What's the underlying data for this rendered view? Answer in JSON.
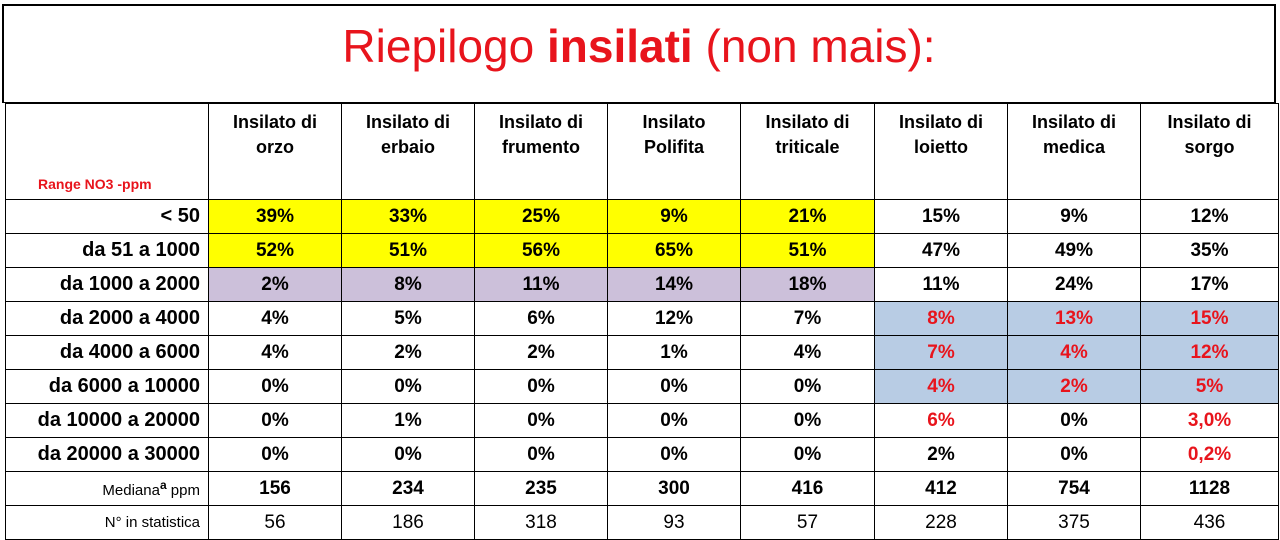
{
  "title": {
    "part1": "Riepilogo ",
    "part2": "insilati",
    "part3": " (non mais):"
  },
  "table": {
    "corner_label": "Range NO3 -ppm",
    "columns": [
      {
        "line1": "Insilato di",
        "line2": "orzo"
      },
      {
        "line1": "Insilato di",
        "line2": "erbaio"
      },
      {
        "line1": "Insilato di",
        "line2": "frumento"
      },
      {
        "line1": "Insilato",
        "line2": "Polifita"
      },
      {
        "line1": "Insilato di",
        "line2": "triticale"
      },
      {
        "line1": "Insilato di",
        "line2": "loietto"
      },
      {
        "line1": "Insilato di",
        "line2": "medica"
      },
      {
        "line1": "Insilato di",
        "line2": "sorgo"
      }
    ],
    "rows": [
      {
        "label": "< 50",
        "values": [
          "39%",
          "33%",
          "25%",
          "9%",
          "21%",
          "15%",
          "9%",
          "12%"
        ]
      },
      {
        "label": "da 51 a 1000",
        "values": [
          "52%",
          "51%",
          "56%",
          "65%",
          "51%",
          "47%",
          "49%",
          "35%"
        ]
      },
      {
        "label": "da 1000 a 2000",
        "values": [
          "2%",
          "8%",
          "11%",
          "14%",
          "18%",
          "11%",
          "24%",
          "17%"
        ]
      },
      {
        "label": "da 2000 a 4000",
        "values": [
          "4%",
          "5%",
          "6%",
          "12%",
          "7%",
          "8%",
          "13%",
          "15%"
        ]
      },
      {
        "label": "da 4000 a 6000",
        "values": [
          "4%",
          "2%",
          "2%",
          "1%",
          "4%",
          "7%",
          "4%",
          "12%"
        ]
      },
      {
        "label": "da 6000 a 10000",
        "values": [
          "0%",
          "0%",
          "0%",
          "0%",
          "0%",
          "4%",
          "2%",
          "5%"
        ]
      },
      {
        "label": "da 10000 a 20000",
        "values": [
          "0%",
          "1%",
          "0%",
          "0%",
          "0%",
          "6%",
          "0%",
          "3,0%"
        ]
      },
      {
        "label": "da 20000 a 30000",
        "values": [
          "0%",
          "0%",
          "0%",
          "0%",
          "0%",
          "2%",
          "0%",
          "0,2%"
        ]
      }
    ],
    "median": {
      "label": "Mediana",
      "sup": "a",
      "unit": " ppm",
      "values": [
        "156",
        "234",
        "235",
        "300",
        "416",
        "412",
        "754",
        "1128"
      ]
    },
    "count": {
      "label": "N° in statistica",
      "values": [
        "56",
        "186",
        "318",
        "93",
        "57",
        "228",
        "375",
        "436"
      ]
    }
  },
  "colors": {
    "title_red": "#e8141c",
    "highlight_yellow": "#ffff00",
    "highlight_purple": "#ccc0da",
    "highlight_blue": "#b8cce4"
  }
}
